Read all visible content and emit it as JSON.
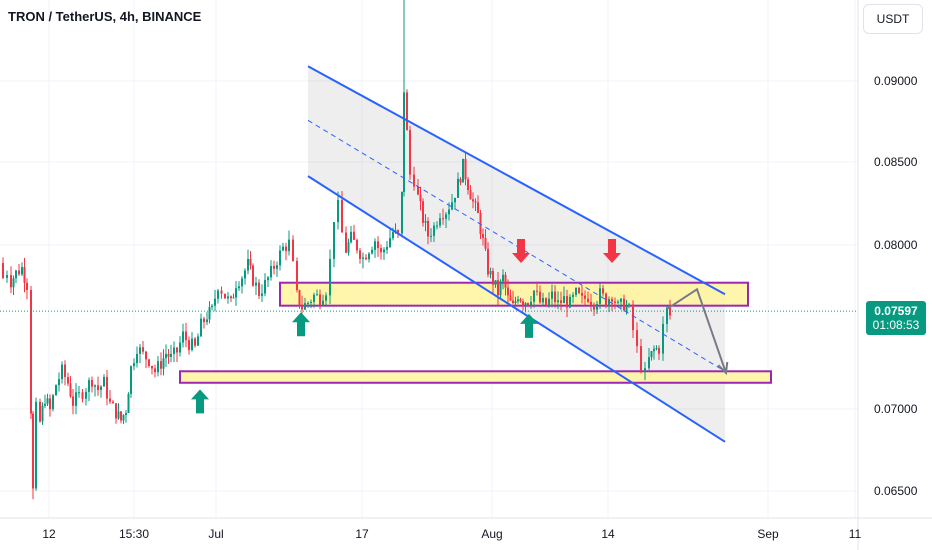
{
  "chart_title": "TRON / TetherUS, 4h, BINANCE",
  "currency_button": "USDT",
  "last_price": "0.07597",
  "countdown": "01:08:53",
  "colors": {
    "up": "#089981",
    "down": "#f23645",
    "channel": "#2962ff",
    "zone_fill": "#fff59d",
    "zone_border": "#9c27b0",
    "arrow_up": "#089981",
    "arrow_down": "#f23645",
    "projection": "#787b86"
  },
  "chart_data": {
    "type": "candlestick",
    "title": "TRON / TetherUS, 4h, BINANCE",
    "ylim": [
      0.0642,
      0.096
    ],
    "y_ticks": [
      "0.09000",
      "0.08500",
      "0.08000",
      "0.07000",
      "0.06500"
    ],
    "x_ticks": [
      "12",
      "15:30",
      "Jul",
      "17",
      "Aug",
      "14",
      "Sep",
      "11"
    ],
    "last_price": 0.07597,
    "price_path": [
      [
        0,
        0.0789
      ],
      [
        3,
        0.078
      ],
      [
        7,
        0.0784
      ],
      [
        11,
        0.0778
      ],
      [
        16,
        0.0783
      ],
      [
        22,
        0.0786
      ],
      [
        27,
        0.0776
      ],
      [
        31,
        0.07
      ],
      [
        33,
        0.065
      ],
      [
        36,
        0.07
      ],
      [
        40,
        0.0692
      ],
      [
        45,
        0.0707
      ],
      [
        50,
        0.0699
      ],
      [
        56,
        0.0715
      ],
      [
        62,
        0.0723
      ],
      [
        68,
        0.0716
      ],
      [
        73,
        0.0704
      ],
      [
        79,
        0.0708
      ],
      [
        86,
        0.0713
      ],
      [
        92,
        0.0718
      ],
      [
        98,
        0.0712
      ],
      [
        104,
        0.0716
      ],
      [
        110,
        0.0703
      ],
      [
        116,
        0.0698
      ],
      [
        121,
        0.0693
      ],
      [
        126,
        0.07
      ],
      [
        131,
        0.0725
      ],
      [
        137,
        0.0738
      ],
      [
        143,
        0.0733
      ],
      [
        149,
        0.073
      ],
      [
        155,
        0.0723
      ],
      [
        161,
        0.0728
      ],
      [
        166,
        0.0734
      ],
      [
        171,
        0.0731
      ],
      [
        177,
        0.0735
      ],
      [
        183,
        0.0745
      ],
      [
        189,
        0.074
      ],
      [
        195,
        0.0737
      ],
      [
        201,
        0.0751
      ],
      [
        207,
        0.0757
      ],
      [
        212,
        0.076
      ],
      [
        218,
        0.0776
      ],
      [
        225,
        0.0769
      ],
      [
        231,
        0.0764
      ],
      [
        236,
        0.0777
      ],
      [
        242,
        0.0781
      ],
      [
        248,
        0.0788
      ],
      [
        253,
        0.0779
      ],
      [
        259,
        0.0771
      ],
      [
        265,
        0.0776
      ],
      [
        271,
        0.0783
      ],
      [
        277,
        0.0791
      ],
      [
        283,
        0.0798
      ],
      [
        289,
        0.0801
      ],
      [
        293,
        0.0787
      ],
      [
        297,
        0.0769
      ],
      [
        302,
        0.0762
      ],
      [
        308,
        0.0765
      ],
      [
        314,
        0.0769
      ],
      [
        320,
        0.0768
      ],
      [
        326,
        0.0773
      ],
      [
        330,
        0.079
      ],
      [
        334,
        0.0817
      ],
      [
        338,
        0.0823
      ],
      [
        342,
        0.0807
      ],
      [
        346,
        0.0797
      ],
      [
        351,
        0.0804
      ],
      [
        357,
        0.0799
      ],
      [
        363,
        0.0792
      ],
      [
        369,
        0.0798
      ],
      [
        375,
        0.0803
      ],
      [
        381,
        0.0794
      ],
      [
        387,
        0.0801
      ],
      [
        393,
        0.0808
      ],
      [
        398,
        0.0805
      ],
      [
        402,
        0.083
      ],
      [
        404,
        0.0895
      ],
      [
        407,
        0.0868
      ],
      [
        410,
        0.0843
      ],
      [
        414,
        0.084
      ],
      [
        418,
        0.0829
      ],
      [
        423,
        0.0816
      ],
      [
        428,
        0.0806
      ],
      [
        434,
        0.0811
      ],
      [
        440,
        0.082
      ],
      [
        446,
        0.0821
      ],
      [
        452,
        0.0827
      ],
      [
        458,
        0.0837
      ],
      [
        463,
        0.0848
      ],
      [
        468,
        0.0837
      ],
      [
        473,
        0.0826
      ],
      [
        478,
        0.0818
      ],
      [
        483,
        0.0802
      ],
      [
        488,
        0.0785
      ],
      [
        493,
        0.0778
      ],
      [
        498,
        0.0771
      ],
      [
        503,
        0.078
      ],
      [
        508,
        0.0767
      ],
      [
        513,
        0.0762
      ],
      [
        518,
        0.077
      ],
      [
        523,
        0.0766
      ],
      [
        528,
        0.0766
      ],
      [
        534,
        0.0772
      ],
      [
        540,
        0.0765
      ],
      [
        546,
        0.0763
      ],
      [
        552,
        0.0769
      ],
      [
        558,
        0.0764
      ],
      [
        564,
        0.0767
      ],
      [
        570,
        0.0764
      ],
      [
        576,
        0.077
      ],
      [
        582,
        0.0766
      ],
      [
        588,
        0.0769
      ],
      [
        594,
        0.0765
      ],
      [
        600,
        0.077
      ],
      [
        606,
        0.0766
      ],
      [
        612,
        0.077
      ],
      [
        618,
        0.0762
      ],
      [
        624,
        0.0764
      ],
      [
        629,
        0.076
      ],
      [
        633,
        0.0748
      ],
      [
        637,
        0.0736
      ],
      [
        641,
        0.0727
      ],
      [
        645,
        0.0721
      ],
      [
        649,
        0.073
      ],
      [
        654,
        0.0736
      ],
      [
        659,
        0.0737
      ],
      [
        663,
        0.075
      ],
      [
        667,
        0.076
      ],
      [
        670,
        0.0757
      ]
    ],
    "regression_channel": {
      "start_x": 308,
      "end_x": 725,
      "upper": [
        0.0909,
        0.077
      ],
      "middle": [
        0.0876,
        0.0723
      ],
      "lower": [
        0.0842,
        0.068
      ]
    },
    "zones": [
      {
        "x_from": 280,
        "x_to": 748,
        "y_top": 0.0777,
        "y_bottom": 0.0763
      },
      {
        "x_from": 180,
        "x_to": 771,
        "y_top": 0.0723,
        "y_bottom": 0.0716
      }
    ],
    "markers": [
      {
        "type": "up",
        "x": 301,
        "y": 0.0759
      },
      {
        "type": "up",
        "x": 200,
        "y": 0.0712
      },
      {
        "type": "up",
        "x": 529,
        "y": 0.0758
      },
      {
        "type": "down",
        "x": 521,
        "y": 0.0789
      },
      {
        "type": "down",
        "x": 612,
        "y": 0.0789
      }
    ],
    "projection": [
      [
        667,
        0.0761
      ],
      [
        697,
        0.0773
      ],
      [
        726,
        0.0722
      ]
    ]
  }
}
